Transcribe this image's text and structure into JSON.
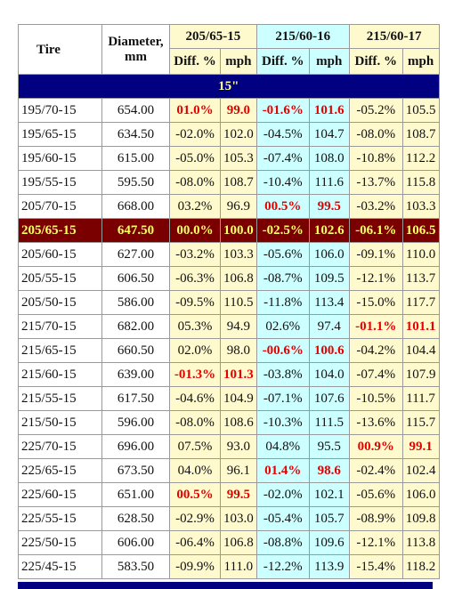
{
  "header": {
    "tire": "Tire",
    "diameter_line1": "Diameter,",
    "diameter_line2": "mm",
    "sizes": [
      "205/65-15",
      "215/60-16",
      "215/60-17"
    ],
    "diff_label": "Diff. %",
    "mph_label": "mph"
  },
  "section": "15\"",
  "rows": [
    {
      "tire": "195/70-15",
      "dia": "654.00",
      "c": [
        [
          "01.0%",
          "99.0",
          true
        ],
        [
          "-01.6%",
          "101.6",
          true
        ],
        [
          "-05.2%",
          "105.5",
          false
        ]
      ]
    },
    {
      "tire": "195/65-15",
      "dia": "634.50",
      "c": [
        [
          "-02.0%",
          "102.0",
          false
        ],
        [
          "-04.5%",
          "104.7",
          false
        ],
        [
          "-08.0%",
          "108.7",
          false
        ]
      ]
    },
    {
      "tire": "195/60-15",
      "dia": "615.00",
      "c": [
        [
          "-05.0%",
          "105.3",
          false
        ],
        [
          "-07.4%",
          "108.0",
          false
        ],
        [
          "-10.8%",
          "112.2",
          false
        ]
      ]
    },
    {
      "tire": "195/55-15",
      "dia": "595.50",
      "c": [
        [
          "-08.0%",
          "108.7",
          false
        ],
        [
          "-10.4%",
          "111.6",
          false
        ],
        [
          "-13.7%",
          "115.8",
          false
        ]
      ]
    },
    {
      "tire": "205/70-15",
      "dia": "668.00",
      "c": [
        [
          "03.2%",
          "96.9",
          false
        ],
        [
          "00.5%",
          "99.5",
          true
        ],
        [
          "-03.2%",
          "103.3",
          false
        ]
      ]
    },
    {
      "tire": "205/65-15",
      "dia": "647.50",
      "highlight": true,
      "c": [
        [
          "00.0%",
          "100.0",
          false
        ],
        [
          "-02.5%",
          "102.6",
          false
        ],
        [
          "-06.1%",
          "106.5",
          false
        ]
      ]
    },
    {
      "tire": "205/60-15",
      "dia": "627.00",
      "c": [
        [
          "-03.2%",
          "103.3",
          false
        ],
        [
          "-05.6%",
          "106.0",
          false
        ],
        [
          "-09.1%",
          "110.0",
          false
        ]
      ]
    },
    {
      "tire": "205/55-15",
      "dia": "606.50",
      "c": [
        [
          "-06.3%",
          "106.8",
          false
        ],
        [
          "-08.7%",
          "109.5",
          false
        ],
        [
          "-12.1%",
          "113.7",
          false
        ]
      ]
    },
    {
      "tire": "205/50-15",
      "dia": "586.00",
      "c": [
        [
          "-09.5%",
          "110.5",
          false
        ],
        [
          "-11.8%",
          "113.4",
          false
        ],
        [
          "-15.0%",
          "117.7",
          false
        ]
      ]
    },
    {
      "tire": "215/70-15",
      "dia": "682.00",
      "c": [
        [
          "05.3%",
          "94.9",
          false
        ],
        [
          "02.6%",
          "97.4",
          false
        ],
        [
          "-01.1%",
          "101.1",
          true
        ]
      ]
    },
    {
      "tire": "215/65-15",
      "dia": "660.50",
      "c": [
        [
          "02.0%",
          "98.0",
          false
        ],
        [
          "-00.6%",
          "100.6",
          true
        ],
        [
          "-04.2%",
          "104.4",
          false
        ]
      ]
    },
    {
      "tire": "215/60-15",
      "dia": "639.00",
      "c": [
        [
          "-01.3%",
          "101.3",
          true
        ],
        [
          "-03.8%",
          "104.0",
          false
        ],
        [
          "-07.4%",
          "107.9",
          false
        ]
      ]
    },
    {
      "tire": "215/55-15",
      "dia": "617.50",
      "c": [
        [
          "-04.6%",
          "104.9",
          false
        ],
        [
          "-07.1%",
          "107.6",
          false
        ],
        [
          "-10.5%",
          "111.7",
          false
        ]
      ]
    },
    {
      "tire": "215/50-15",
      "dia": "596.00",
      "c": [
        [
          "-08.0%",
          "108.6",
          false
        ],
        [
          "-10.3%",
          "111.5",
          false
        ],
        [
          "-13.6%",
          "115.7",
          false
        ]
      ]
    },
    {
      "tire": "225/70-15",
      "dia": "696.00",
      "c": [
        [
          "07.5%",
          "93.0",
          false
        ],
        [
          "04.8%",
          "95.5",
          false
        ],
        [
          "00.9%",
          "99.1",
          true
        ]
      ]
    },
    {
      "tire": "225/65-15",
      "dia": "673.50",
      "c": [
        [
          "04.0%",
          "96.1",
          false
        ],
        [
          "01.4%",
          "98.6",
          true
        ],
        [
          "-02.4%",
          "102.4",
          false
        ]
      ]
    },
    {
      "tire": "225/60-15",
      "dia": "651.00",
      "c": [
        [
          "00.5%",
          "99.5",
          true
        ],
        [
          "-02.0%",
          "102.1",
          false
        ],
        [
          "-05.6%",
          "106.0",
          false
        ]
      ]
    },
    {
      "tire": "225/55-15",
      "dia": "628.50",
      "c": [
        [
          "-02.9%",
          "103.0",
          false
        ],
        [
          "-05.4%",
          "105.7",
          false
        ],
        [
          "-08.9%",
          "109.8",
          false
        ]
      ]
    },
    {
      "tire": "225/50-15",
      "dia": "606.00",
      "c": [
        [
          "-06.4%",
          "106.8",
          false
        ],
        [
          "-08.8%",
          "109.6",
          false
        ],
        [
          "-12.1%",
          "113.8",
          false
        ]
      ]
    },
    {
      "tire": "225/45-15",
      "dia": "583.50",
      "c": [
        [
          "-09.9%",
          "111.0",
          false
        ],
        [
          "-12.2%",
          "113.9",
          false
        ],
        [
          "-15.4%",
          "118.2",
          false
        ]
      ]
    }
  ],
  "colors": {
    "col1_bg": "#fffacd",
    "col2_bg": "#ccffff",
    "col3_bg": "#fffacd",
    "section_bg": "#000080",
    "section_text": "#ffff99",
    "highlight_bg": "#7a0000",
    "highlight_text": "#ffff66",
    "match_text": "#e60000"
  }
}
